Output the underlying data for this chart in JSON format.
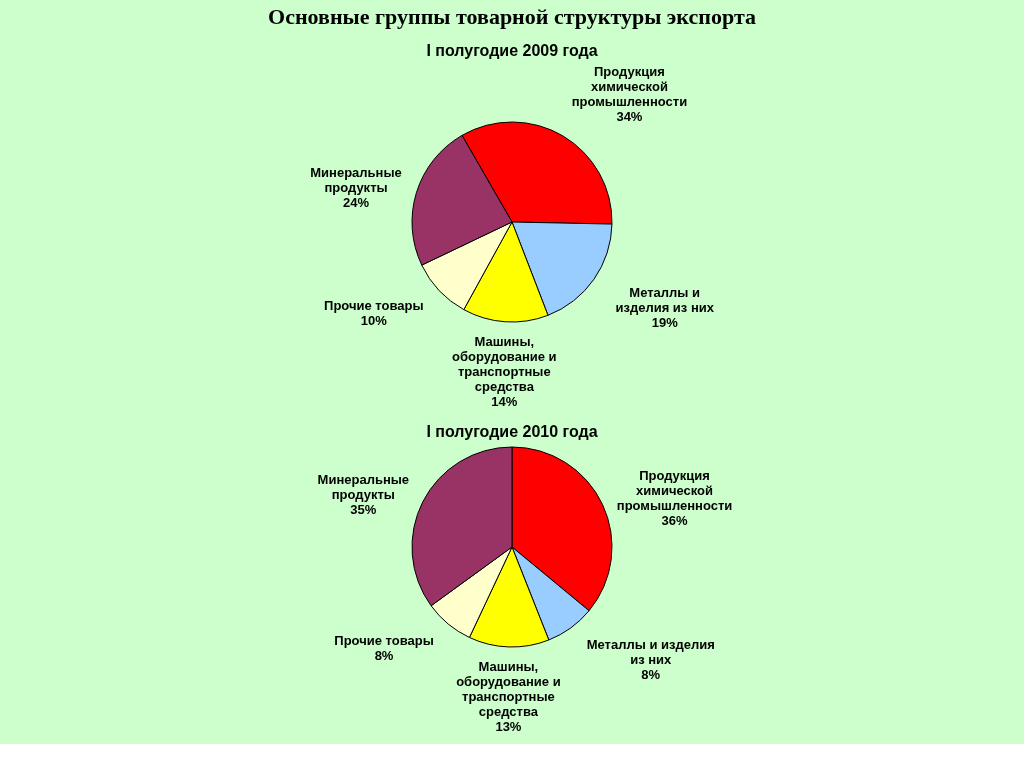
{
  "chart_data": [
    {
      "type": "pie",
      "title": "Основные группы товарной структуры экспорта",
      "subtitle": "I полугодие 2009 года",
      "categories": [
        "Продукция химической промышленности",
        "Металлы и изделия из них",
        "Машины, оборудование и транспортные средства",
        "Прочие товары",
        "Минеральные продукты"
      ],
      "values": [
        34,
        19,
        14,
        10,
        24
      ],
      "value_labels": [
        "34%",
        "19%",
        "14%",
        "10%",
        "24%"
      ],
      "colors": [
        "#ff0000",
        "#99ccff",
        "#ffff00",
        "#ffffcc",
        "#993366"
      ]
    },
    {
      "type": "pie",
      "subtitle": "I полугодие 2010 года",
      "categories": [
        "Продукция химической промышленности",
        "Металлы и изделия из них",
        "Машины, оборудование и транспортные средства",
        "Прочие товары",
        "Минеральные продукты"
      ],
      "values": [
        36,
        8,
        13,
        8,
        35
      ],
      "value_labels": [
        "36%",
        "8%",
        "13%",
        "8%",
        "35%"
      ],
      "colors": [
        "#ff0000",
        "#99ccff",
        "#ffff00",
        "#ffffcc",
        "#993366"
      ]
    }
  ]
}
